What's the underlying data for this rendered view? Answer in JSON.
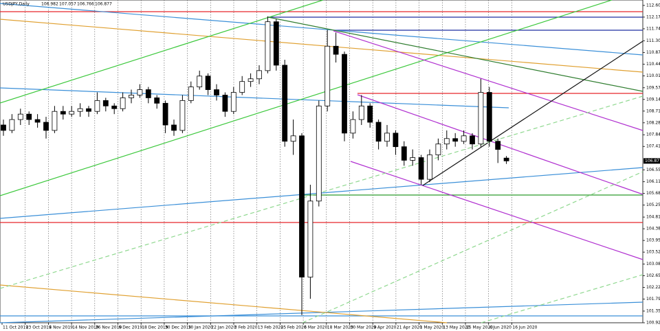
{
  "chart_data": {
    "type": "candlestick",
    "title": "USDJPY,Daily",
    "x_labels": [
      "11 Oct 2019",
      "23 Oct 2019",
      "4 Nov 2019",
      "14 Nov 2019",
      "26 Nov 2019",
      "6 Dec 2019",
      "18 Dec 2019",
      "30 Dec 2019",
      "10 Jan 2020",
      "22 Jan 2020",
      "3 Feb 2020",
      "13 Feb 2020",
      "25 Feb 2020",
      "6 Mar 2020",
      "18 Mar 2020",
      "30 Mar 2020",
      "9 Apr 2020",
      "21 Apr 2020",
      "1 May 2020",
      "13 May 2020",
      "25 May 2020",
      "4 Jun 2020",
      "16 Jun 2020"
    ],
    "candles": [
      [
        108.2,
        108.4,
        107.8,
        108.0
      ],
      [
        108.0,
        108.6,
        107.9,
        108.4
      ],
      [
        108.4,
        108.8,
        108.2,
        108.6
      ],
      [
        108.6,
        108.7,
        108.2,
        108.4
      ],
      [
        108.4,
        108.6,
        108.1,
        108.3
      ],
      [
        108.3,
        108.5,
        107.7,
        108.0
      ],
      [
        108.0,
        108.9,
        107.9,
        108.7
      ],
      [
        108.7,
        108.9,
        108.4,
        108.6
      ],
      [
        108.6,
        108.9,
        108.5,
        108.7
      ],
      [
        108.7,
        109.0,
        108.5,
        108.8
      ],
      [
        108.8,
        108.9,
        108.5,
        108.7
      ],
      [
        108.7,
        109.4,
        108.6,
        109.1
      ],
      [
        109.1,
        109.2,
        108.7,
        108.9
      ],
      [
        108.9,
        109.0,
        108.6,
        108.8
      ],
      [
        108.8,
        109.4,
        108.7,
        109.2
      ],
      [
        109.2,
        109.5,
        109.0,
        109.3
      ],
      [
        109.3,
        109.7,
        109.2,
        109.5
      ],
      [
        109.5,
        109.6,
        109.0,
        109.2
      ],
      [
        109.2,
        109.3,
        108.8,
        109.0
      ],
      [
        109.0,
        109.1,
        107.9,
        108.2
      ],
      [
        108.2,
        108.4,
        107.8,
        108.0
      ],
      [
        108.0,
        109.3,
        107.9,
        109.1
      ],
      [
        109.1,
        109.8,
        109.0,
        109.6
      ],
      [
        109.6,
        110.2,
        109.5,
        110.0
      ],
      [
        110.0,
        110.1,
        109.3,
        109.5
      ],
      [
        109.5,
        109.7,
        109.1,
        109.3
      ],
      [
        109.3,
        109.4,
        108.5,
        108.7
      ],
      [
        108.7,
        109.6,
        108.6,
        109.4
      ],
      [
        109.4,
        110.0,
        109.3,
        109.8
      ],
      [
        109.8,
        110.1,
        109.6,
        109.9
      ],
      [
        109.9,
        110.4,
        109.7,
        110.2
      ],
      [
        110.2,
        112.2,
        110.1,
        112.0
      ],
      [
        112.0,
        112.1,
        110.2,
        110.4
      ],
      [
        110.4,
        110.6,
        107.4,
        107.6
      ],
      [
        107.6,
        108.4,
        107.1,
        107.8
      ],
      [
        107.8,
        107.9,
        101.2,
        102.6
      ],
      [
        102.6,
        106.0,
        101.8,
        105.4
      ],
      [
        105.4,
        109.1,
        105.2,
        108.9
      ],
      [
        108.9,
        111.7,
        108.7,
        111.1
      ],
      [
        111.1,
        111.6,
        110.5,
        110.8
      ],
      [
        110.8,
        110.9,
        107.6,
        107.9
      ],
      [
        107.9,
        108.7,
        107.7,
        108.4
      ],
      [
        108.4,
        109.3,
        108.2,
        108.9
      ],
      [
        108.9,
        109.0,
        108.1,
        108.3
      ],
      [
        108.3,
        108.4,
        107.3,
        107.6
      ],
      [
        107.6,
        108.2,
        107.4,
        107.9
      ],
      [
        107.9,
        108.0,
        107.1,
        107.4
      ],
      [
        107.4,
        107.6,
        106.7,
        106.9
      ],
      [
        106.9,
        107.3,
        106.7,
        107.0
      ],
      [
        107.0,
        107.1,
        106.0,
        106.2
      ],
      [
        106.2,
        107.3,
        106.1,
        107.1
      ],
      [
        107.1,
        107.7,
        106.9,
        107.5
      ],
      [
        107.5,
        108.0,
        107.3,
        107.7
      ],
      [
        107.7,
        107.9,
        107.4,
        107.6
      ],
      [
        107.6,
        108.0,
        107.5,
        107.8
      ],
      [
        107.8,
        107.9,
        107.3,
        107.5
      ],
      [
        107.5,
        109.9,
        107.4,
        109.4
      ],
      [
        109.4,
        109.6,
        107.4,
        107.6
      ],
      [
        107.6,
        107.7,
        106.8,
        107.3
      ],
      [
        106.982,
        107.057,
        106.766,
        106.877
      ]
    ],
    "ylim": [
      100.92,
      112.8
    ],
    "yticks": [
      {
        "value": 112.6,
        "label": "112.600"
      },
      {
        "value": 112.17,
        "label": "112.170"
      },
      {
        "value": 111.74,
        "label": "111.740"
      },
      {
        "value": 111.3,
        "label": "111.300"
      },
      {
        "value": 110.87,
        "label": "110.870"
      },
      {
        "value": 110.44,
        "label": "110.440"
      },
      {
        "value": 110.01,
        "label": "110.010"
      },
      {
        "value": 109.57,
        "label": "109.570"
      },
      {
        "value": 109.14,
        "label": "109.140"
      },
      {
        "value": 108.71,
        "label": "108.710"
      },
      {
        "value": 108.28,
        "label": "108.280"
      },
      {
        "value": 107.84,
        "label": "107.840"
      },
      {
        "value": 107.41,
        "label": "107.410"
      },
      {
        "value": 106.55,
        "label": "106.550"
      },
      {
        "value": 106.11,
        "label": "106.110"
      },
      {
        "value": 105.68,
        "label": "105.680"
      },
      {
        "value": 105.25,
        "label": "105.250"
      },
      {
        "value": 104.81,
        "label": "104.810"
      },
      {
        "value": 104.38,
        "label": "104.380"
      },
      {
        "value": 103.95,
        "label": "103.950"
      },
      {
        "value": 103.52,
        "label": "103.520"
      },
      {
        "value": 103.08,
        "label": "103.080"
      },
      {
        "value": 102.65,
        "label": "102.650"
      },
      {
        "value": 102.22,
        "label": "102.220"
      },
      {
        "value": 101.79,
        "label": "101.790"
      },
      {
        "value": 101.35,
        "label": "101.350"
      },
      {
        "value": 100.92,
        "label": "100.920"
      }
    ],
    "xgrid": true,
    "up_color": "#ffffff",
    "down_color": "#000000"
  }
}
